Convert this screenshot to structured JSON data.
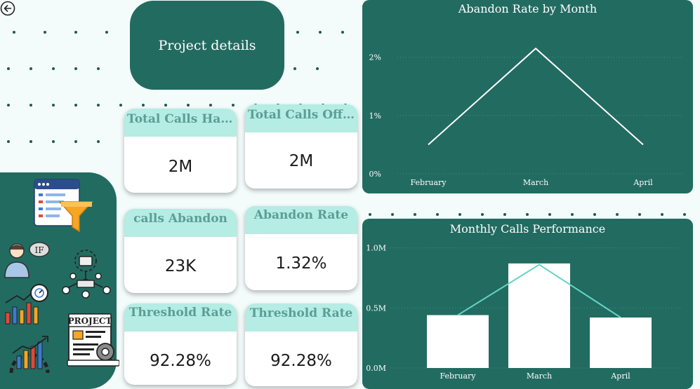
{
  "header": {
    "project_title": "Project details"
  },
  "cards": [
    {
      "label": "Total Calls Handled",
      "value": "2M"
    },
    {
      "label": "Total Calls Offered",
      "value": "2M"
    },
    {
      "label": "calls Abandon",
      "value": "23K"
    },
    {
      "label": "Abandon Rate",
      "value": "1.32%"
    },
    {
      "label": "Threshold Rate",
      "value": "92.28%"
    },
    {
      "label": "Threshold Rate",
      "value": "92.28%"
    }
  ],
  "icons": {
    "back": "back-arrow-icon",
    "sidebar": [
      "dashboard-filter-icon",
      "user-if-icon",
      "network-team-icon",
      "growth-chart-icon",
      "project-document-icon",
      "settings-growth-icon"
    ],
    "if_text": "IF",
    "project_text": "PROJECT"
  },
  "colors": {
    "panel": "#226b61",
    "card_header": "#b5ece3",
    "card_header_text": "#5a9e95",
    "line_accent": "#63d6c4"
  },
  "chart_data": [
    {
      "type": "line",
      "title": "Abandon Rate by Month",
      "categories": [
        "February",
        "March",
        "April"
      ],
      "values": [
        0.5,
        2.15,
        0.5
      ],
      "ylim": [
        0,
        2.5
      ],
      "yticks": [
        "0%",
        "1%",
        "2%"
      ],
      "grid": true
    },
    {
      "type": "bar",
      "title": "Monthly Calls Performance",
      "categories": [
        "February",
        "March",
        "April"
      ],
      "series": [
        {
          "type": "bar",
          "values": [
            0.44,
            0.87,
            0.42
          ]
        },
        {
          "type": "line",
          "values": [
            0.44,
            0.86,
            0.42
          ]
        }
      ],
      "ylim": [
        0,
        1.05
      ],
      "yticks": [
        "0.0M",
        "0.5M",
        "1.0M"
      ],
      "grid": true
    }
  ]
}
